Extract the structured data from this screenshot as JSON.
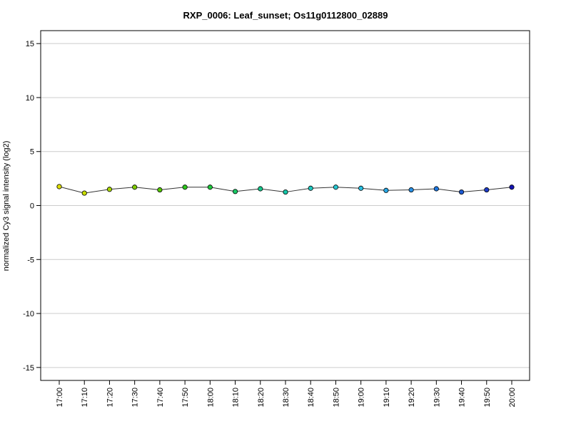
{
  "chart_data": {
    "type": "line",
    "title": "RXP_0006: Leaf_sunset; Os11g0112800_02889",
    "xlabel": "",
    "ylabel": "normalized Cy3 signal intensity (log2)",
    "ylim": [
      -16.2,
      16.2
    ],
    "yticks": [
      -15,
      -10,
      -5,
      0,
      5,
      10,
      15
    ],
    "ytick_labels": [
      "-15",
      "-10",
      "-5",
      "0",
      "5",
      "10",
      "15"
    ],
    "grid": true,
    "legend": "none",
    "categories": [
      "17:00",
      "17:10",
      "17:20",
      "17:30",
      "17:40",
      "17:50",
      "18:00",
      "18:10",
      "18:20",
      "18:30",
      "18:40",
      "18:50",
      "19:00",
      "19:10",
      "19:20",
      "19:30",
      "19:40",
      "19:50",
      "20:00"
    ],
    "series": [
      {
        "values": [
          1.75,
          1.15,
          1.5,
          1.7,
          1.45,
          1.7,
          1.7,
          1.3,
          1.55,
          1.25,
          1.6,
          1.7,
          1.6,
          1.4,
          1.45,
          1.55,
          1.25,
          1.45,
          1.7
        ],
        "line_color": "#333333",
        "point_colors": [
          "#dddd00",
          "#c8dd00",
          "#a8d600",
          "#7fcc00",
          "#55c800",
          "#2dc81e",
          "#1ec83c",
          "#18c864",
          "#16c88c",
          "#16c8aa",
          "#1ec8c0",
          "#28c8d2",
          "#28bee0",
          "#28a8e6",
          "#2890e6",
          "#1e78e0",
          "#1e5ad2",
          "#1e3cc8",
          "#1414b4"
        ]
      }
    ]
  }
}
